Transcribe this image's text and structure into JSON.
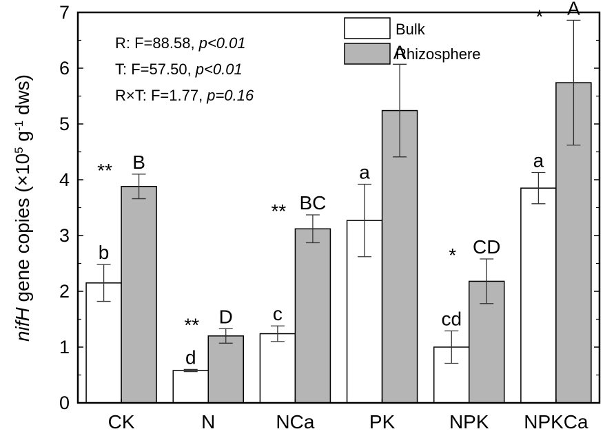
{
  "colors": {
    "bulk_fill": "#ffffff",
    "rhizo_fill": "#b5b5b5",
    "stroke": "#000000"
  },
  "chart_data": {
    "type": "bar",
    "categories": [
      "CK",
      "N",
      "NCa",
      "PK",
      "NPK",
      "NPKCa"
    ],
    "ylim": [
      0,
      7
    ],
    "yticks": [
      0,
      1,
      2,
      3,
      4,
      5,
      6,
      7
    ],
    "ylabel_italic": "nifH",
    "ylabel_rest": " gene copies (×10",
    "ylabel_sup1": "5",
    "ylabel_mid": " g",
    "ylabel_sup2": "-1",
    "ylabel_end": " dws)",
    "xlabel": "",
    "legend_position": "top-right",
    "series": [
      {
        "name": "Bulk",
        "values": [
          2.15,
          0.58,
          1.24,
          3.27,
          1.0,
          3.85
        ],
        "errors": [
          0.33,
          0.02,
          0.14,
          0.65,
          0.29,
          0.28
        ],
        "letters": [
          "b",
          "d",
          "c",
          "a",
          "cd",
          "a"
        ]
      },
      {
        "name": "Rhizosphere",
        "values": [
          3.88,
          1.2,
          3.12,
          5.24,
          2.18,
          5.74
        ],
        "errors": [
          0.22,
          0.13,
          0.25,
          0.83,
          0.4,
          1.12
        ],
        "letters": [
          "B",
          "D",
          "BC",
          "A",
          "CD",
          "A"
        ]
      }
    ],
    "stars": [
      "**",
      "**",
      "**",
      "*",
      "*",
      "*"
    ],
    "stats": [
      {
        "prefix": "R: F=88.58, ",
        "p_label": "p",
        "p_rel": "<",
        "p_val": "0.01"
      },
      {
        "prefix": "T:  F=57.50, ",
        "p_label": "p",
        "p_rel": "<",
        "p_val": "0.01"
      },
      {
        "prefix": "R×T: F=1.77, ",
        "p_label": "p",
        "p_rel": "=",
        "p_val": "0.16"
      }
    ]
  }
}
